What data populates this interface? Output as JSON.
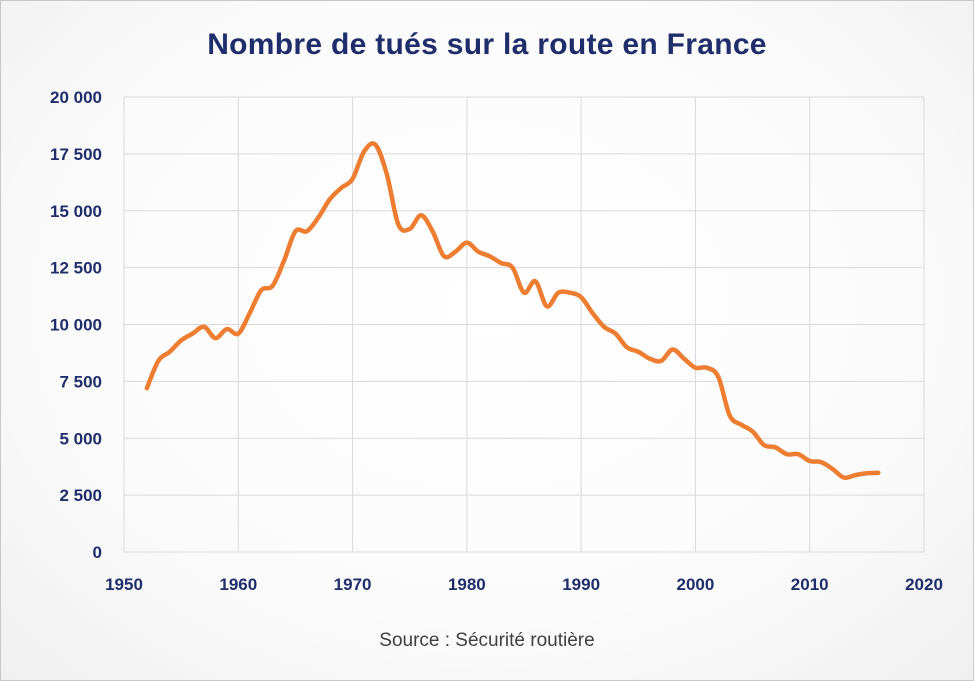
{
  "chart_data": {
    "type": "line",
    "title": "Nombre de tués sur la route en France",
    "source": "Source : Sécurité routière",
    "xlim": [
      1950,
      2020
    ],
    "ylim": [
      0,
      20000
    ],
    "x_ticks": [
      1950,
      1960,
      1970,
      1980,
      1990,
      2000,
      2010,
      2020
    ],
    "x_tick_labels": [
      "1950",
      "1960",
      "1970",
      "1980",
      "1990",
      "2000",
      "2010",
      "2020"
    ],
    "y_ticks": [
      0,
      2500,
      5000,
      7500,
      10000,
      12500,
      15000,
      17500,
      20000
    ],
    "y_tick_labels": [
      "0",
      "2 500",
      "5 000",
      "7 500",
      "10 000",
      "12 500",
      "15 000",
      "17 500",
      "20 000"
    ],
    "grid": true,
    "series": [
      {
        "color": "#ed7d31",
        "x": [
          1952,
          1953,
          1954,
          1955,
          1956,
          1957,
          1958,
          1959,
          1960,
          1961,
          1962,
          1963,
          1964,
          1965,
          1966,
          1967,
          1968,
          1969,
          1970,
          1971,
          1972,
          1973,
          1974,
          1975,
          1976,
          1977,
          1978,
          1979,
          1980,
          1981,
          1982,
          1983,
          1984,
          1985,
          1986,
          1987,
          1988,
          1989,
          1990,
          1991,
          1992,
          1993,
          1994,
          1995,
          1996,
          1997,
          1998,
          1999,
          2000,
          2001,
          2002,
          2003,
          2004,
          2005,
          2006,
          2007,
          2008,
          2009,
          2010,
          2011,
          2012,
          2013,
          2014,
          2015,
          2016
        ],
        "values": [
          7200,
          8400,
          8800,
          9300,
          9600,
          9900,
          9400,
          9800,
          9600,
          10500,
          11500,
          11700,
          12800,
          14100,
          14100,
          14700,
          15500,
          16000,
          16400,
          17600,
          17900,
          16600,
          14400,
          14200,
          14800,
          14100,
          13000,
          13200,
          13600,
          13200,
          13000,
          12700,
          12500,
          11400,
          11900,
          10800,
          11400,
          11400,
          11200,
          10500,
          9900,
          9600,
          9000,
          8800,
          8500,
          8400,
          8900,
          8500,
          8100,
          8100,
          7700,
          6000,
          5600,
          5300,
          4700,
          4600,
          4300,
          4300,
          4000,
          3950,
          3650,
          3270,
          3380,
          3460,
          3480
        ]
      }
    ]
  }
}
